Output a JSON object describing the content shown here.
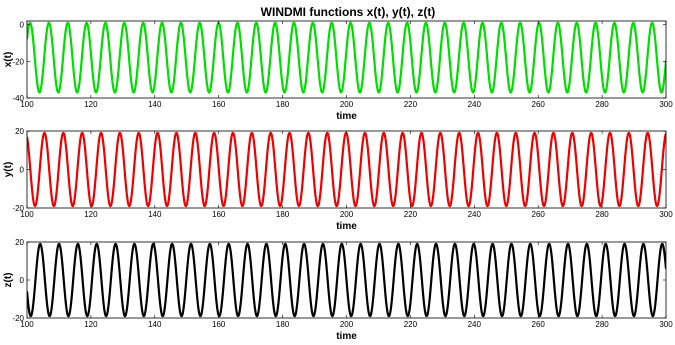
{
  "title": "WINDMI functions x(t), y(t), z(t)",
  "chart_data": [
    {
      "type": "line",
      "xlabel": "time",
      "ylabel": "x(t)",
      "xlim": [
        100,
        300
      ],
      "ylim": [
        -40,
        2
      ],
      "xticks": [
        "100",
        "120",
        "140",
        "160",
        "180",
        "200",
        "220",
        "240",
        "260",
        "280",
        "300"
      ],
      "yticks": [
        "0",
        "-20",
        "-40"
      ],
      "series": [
        {
          "color": "#00dd00",
          "period": 5.9,
          "max": 1,
          "min": -37,
          "start_value": -8,
          "start_direction": "rising"
        }
      ]
    },
    {
      "type": "line",
      "xlabel": "time",
      "ylabel": "y(t)",
      "xlim": [
        100,
        300
      ],
      "ylim": [
        -20,
        20
      ],
      "xticks": [
        "100",
        "120",
        "140",
        "160",
        "180",
        "200",
        "220",
        "240",
        "260",
        "280",
        "300"
      ],
      "yticks": [
        "20",
        "0",
        "-20"
      ],
      "series": [
        {
          "color": "#ee0000",
          "period": 5.9,
          "max": 19,
          "min": -19,
          "start_value": 17,
          "start_direction": "falling"
        }
      ]
    },
    {
      "type": "line",
      "xlabel": "time",
      "ylabel": "z(t)",
      "xlim": [
        100,
        300
      ],
      "ylim": [
        -20,
        20
      ],
      "xticks": [
        "100",
        "120",
        "140",
        "160",
        "180",
        "200",
        "220",
        "240",
        "260",
        "280",
        "300"
      ],
      "yticks": [
        "20",
        "0",
        "-20"
      ],
      "series": [
        {
          "color": "#000000",
          "period": 5.9,
          "max": 19,
          "min": -19,
          "start_value": -6,
          "start_direction": "falling"
        }
      ]
    }
  ]
}
